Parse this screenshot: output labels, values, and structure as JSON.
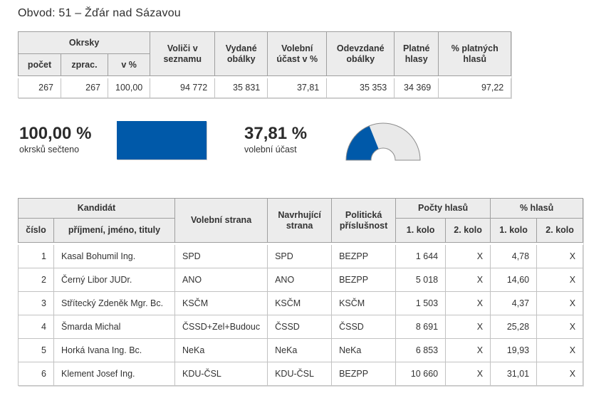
{
  "page": {
    "title": "Obvod: 51 – Žďár nad Sázavou"
  },
  "colors": {
    "accent": "#0059a9",
    "gauge_rest": "#e9e9e9",
    "gauge_stroke": "#8c8c8c"
  },
  "summary": {
    "header": {
      "okrsky": "Okrsky",
      "pocet": "počet",
      "zprac": "zprac.",
      "v_pct": "v %",
      "volici": "Voliči v seznamu",
      "vydane": "Vydané obálky",
      "ucast": "Volební účast v %",
      "odevzdane": "Odevzdané obálky",
      "platne": "Platné hlasy",
      "pct_platnych": "% platných hlasů"
    },
    "row": {
      "pocet": "267",
      "zprac": "267",
      "v_pct": "100,00",
      "volici": "94 772",
      "vydane": "35 831",
      "ucast": "37,81",
      "odevzdane": "35 353",
      "platne": "34 369",
      "pct_platnych": "97,22"
    }
  },
  "progress": {
    "label": "100,00 %",
    "caption": "okrsků sečteno",
    "value": 100
  },
  "turnout": {
    "label": "37,81 %",
    "caption": "volební účast",
    "value": 37.81
  },
  "candidates": {
    "header": {
      "kandidat": "Kandidát",
      "cislo": "číslo",
      "jmeno": "příjmení, jméno, tituly",
      "volebni_strana": "Volební strana",
      "navrhujici_strana": "Navrhující strana",
      "politicka_prislusnost": "Politická příslušnost",
      "pocty_hlasu": "Počty hlasů",
      "pct_hlasu": "% hlasů",
      "kolo1": "1. kolo",
      "kolo2": "2. kolo"
    },
    "rows": [
      [
        "1",
        "Kasal Bohumil Ing.",
        "SPD",
        "SPD",
        "BEZPP",
        "1 644",
        "X",
        "4,78",
        "X"
      ],
      [
        "2",
        "Černý Libor JUDr.",
        "ANO",
        "ANO",
        "BEZPP",
        "5 018",
        "X",
        "14,60",
        "X"
      ],
      [
        "3",
        "Střítecký Zdeněk Mgr. Bc.",
        "KSČM",
        "KSČM",
        "KSČM",
        "1 503",
        "X",
        "4,37",
        "X"
      ],
      [
        "4",
        "Šmarda Michal",
        "ČSSD+Zel+Budouc",
        "ČSSD",
        "ČSSD",
        "8 691",
        "X",
        "25,28",
        "X"
      ],
      [
        "5",
        "Horká Ivana Ing. Bc.",
        "NeKa",
        "NeKa",
        "NeKa",
        "6 853",
        "X",
        "19,93",
        "X"
      ],
      [
        "6",
        "Klement Josef Ing.",
        "KDU-ČSL",
        "KDU-ČSL",
        "BEZPP",
        "10 660",
        "X",
        "31,01",
        "X"
      ]
    ]
  }
}
